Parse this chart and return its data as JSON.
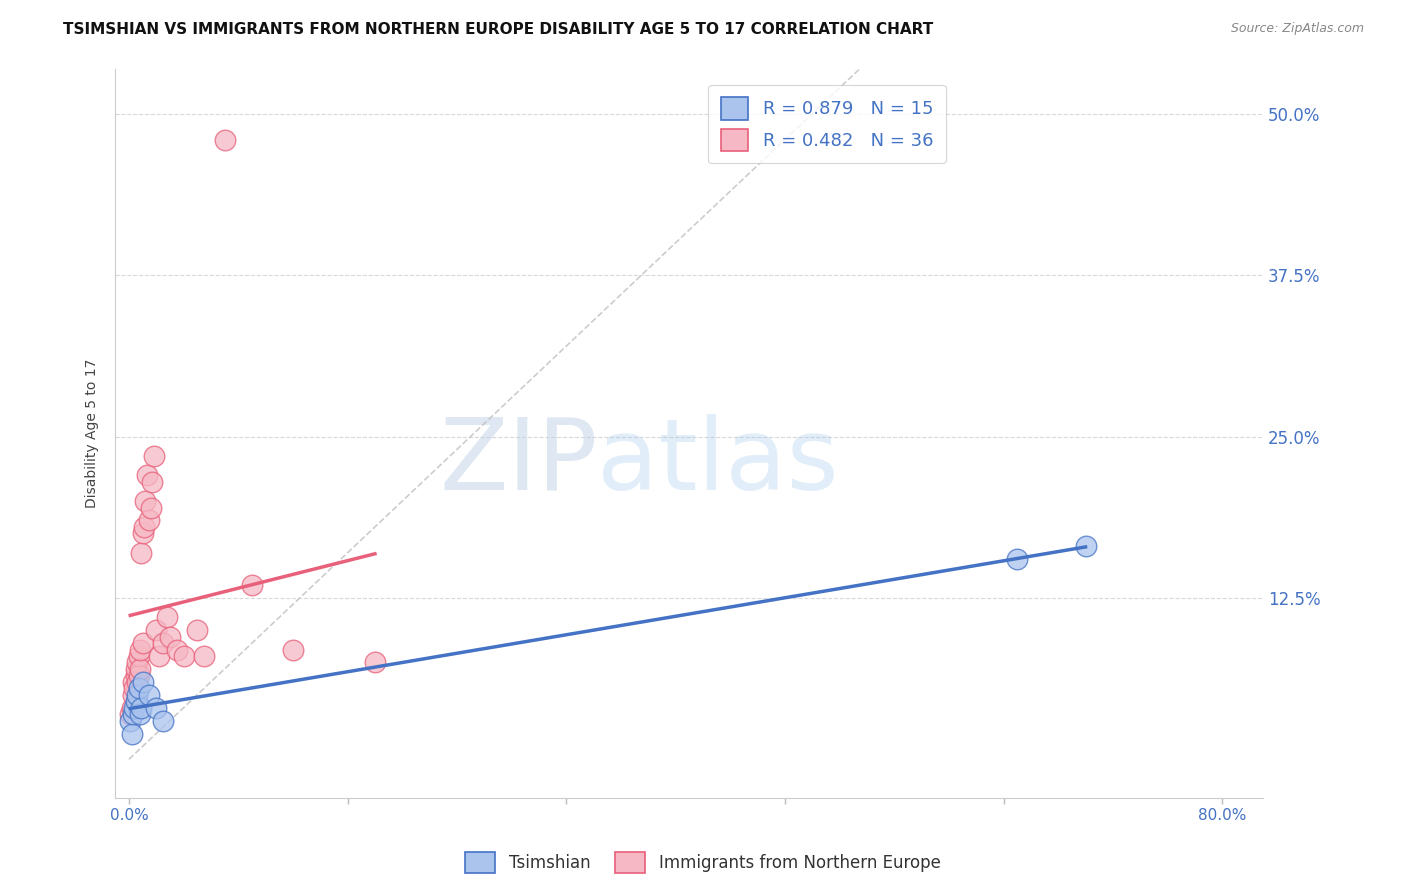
{
  "title": "TSIMSHIAN VS IMMIGRANTS FROM NORTHERN EUROPE DISABILITY AGE 5 TO 17 CORRELATION CHART",
  "source": "Source: ZipAtlas.com",
  "ylabel": "Disability Age 5 to 17",
  "ytick_labels": [
    "12.5%",
    "25.0%",
    "37.5%",
    "50.0%"
  ],
  "ytick_values": [
    0.125,
    0.25,
    0.375,
    0.5
  ],
  "xtick_values": [
    0.0,
    0.16,
    0.32,
    0.48,
    0.64,
    0.8
  ],
  "xtick_labels": [
    "0.0%",
    "",
    "",
    "",
    "",
    "80.0%"
  ],
  "xlim": [
    -0.01,
    0.83
  ],
  "ylim": [
    -0.03,
    0.535
  ],
  "legend_r1": "R = 0.879",
  "legend_n1": "N = 15",
  "legend_r2": "R = 0.482",
  "legend_n2": "N = 36",
  "series1_color": "#aac4ee",
  "series2_color": "#f5b8c4",
  "line1_color": "#4472c4",
  "line2_color": "#e8607a",
  "legend_text_color": "#4472c4",
  "watermark_zip": "ZIP",
  "watermark_atlas": "atlas",
  "background_color": "#ffffff",
  "grid_color": "#d8d8d8",
  "title_fontsize": 11,
  "source_fontsize": 9,
  "axis_label_fontsize": 10,
  "tick_fontsize": 11,
  "tsimshian_x": [
    0.001,
    0.002,
    0.003,
    0.004,
    0.005,
    0.006,
    0.007,
    0.008,
    0.009,
    0.01,
    0.015,
    0.02,
    0.025,
    0.65,
    0.7
  ],
  "tsimshian_y": [
    0.03,
    0.02,
    0.035,
    0.04,
    0.045,
    0.05,
    0.055,
    0.035,
    0.04,
    0.06,
    0.05,
    0.04,
    0.03,
    0.155,
    0.165
  ],
  "immigrants_x": [
    0.001,
    0.002,
    0.003,
    0.003,
    0.004,
    0.005,
    0.005,
    0.006,
    0.006,
    0.007,
    0.007,
    0.008,
    0.008,
    0.009,
    0.01,
    0.01,
    0.011,
    0.012,
    0.013,
    0.015,
    0.016,
    0.017,
    0.018,
    0.02,
    0.022,
    0.025,
    0.028,
    0.03,
    0.035,
    0.04,
    0.05,
    0.055,
    0.07,
    0.09,
    0.12,
    0.18
  ],
  "immigrants_y": [
    0.035,
    0.04,
    0.05,
    0.06,
    0.055,
    0.065,
    0.07,
    0.06,
    0.075,
    0.065,
    0.08,
    0.07,
    0.085,
    0.16,
    0.09,
    0.175,
    0.18,
    0.2,
    0.22,
    0.185,
    0.195,
    0.215,
    0.235,
    0.1,
    0.08,
    0.09,
    0.11,
    0.095,
    0.085,
    0.08,
    0.1,
    0.08,
    0.48,
    0.135,
    0.085,
    0.075
  ]
}
